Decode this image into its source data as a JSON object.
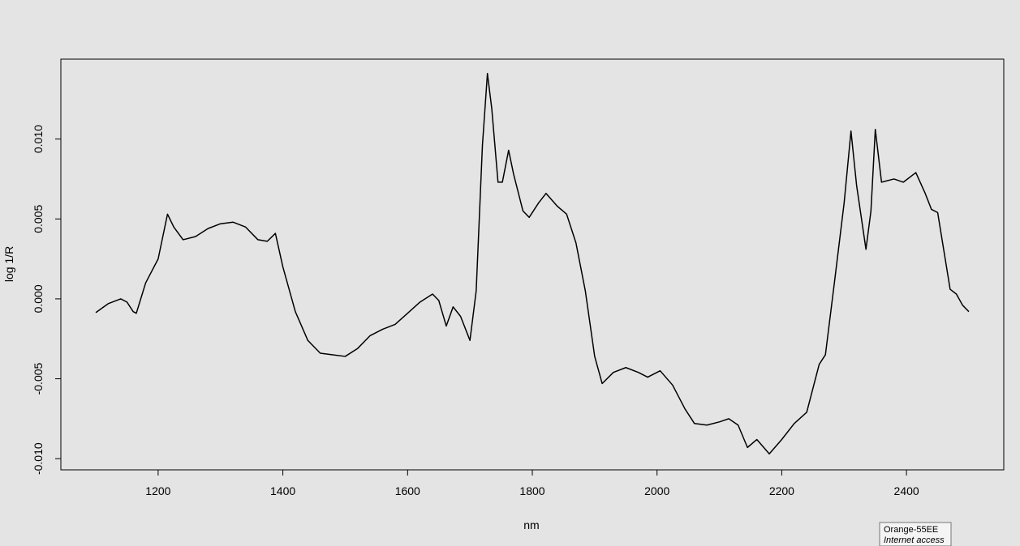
{
  "chart_data": {
    "type": "line",
    "x_label": "nm",
    "y_label": "log 1/R",
    "x": [
      1100,
      1120,
      1140,
      1150,
      1160,
      1165,
      1180,
      1200,
      1215,
      1225,
      1240,
      1260,
      1280,
      1300,
      1320,
      1340,
      1360,
      1375,
      1388,
      1400,
      1420,
      1440,
      1460,
      1480,
      1500,
      1520,
      1540,
      1560,
      1580,
      1600,
      1620,
      1640,
      1650,
      1662,
      1673,
      1685,
      1700,
      1710,
      1720,
      1728,
      1735,
      1745,
      1752,
      1762,
      1770,
      1785,
      1795,
      1810,
      1822,
      1840,
      1855,
      1870,
      1885,
      1900,
      1912,
      1930,
      1950,
      1970,
      1985,
      2005,
      2025,
      2045,
      2060,
      2080,
      2100,
      2115,
      2130,
      2145,
      2160,
      2180,
      2200,
      2220,
      2240,
      2260,
      2270,
      2285,
      2300,
      2311,
      2320,
      2335,
      2343,
      2350,
      2360,
      2380,
      2395,
      2415,
      2430,
      2440,
      2450,
      2460,
      2470,
      2480,
      2490,
      2500
    ],
    "series": [
      {
        "color": "#000000",
        "values": [
          -0.00086,
          -0.0003,
          0.0,
          -0.0002,
          -0.0008,
          -0.0009,
          0.001,
          0.0025,
          0.0053,
          0.0045,
          0.0037,
          0.0039,
          0.0044,
          0.0047,
          0.0048,
          0.0045,
          0.0037,
          0.0036,
          0.0041,
          0.002,
          -0.0008,
          -0.0026,
          -0.0034,
          -0.0035,
          -0.0036,
          -0.0031,
          -0.0023,
          -0.0019,
          -0.0016,
          -0.0009,
          -0.0002,
          0.0003,
          -0.0001,
          -0.0017,
          -0.0005,
          -0.0011,
          -0.0026,
          0.0005,
          0.0096,
          0.0141,
          0.0119,
          0.0073,
          0.0073,
          0.0093,
          0.0078,
          0.0055,
          0.0051,
          0.006,
          0.0066,
          0.0058,
          0.0053,
          0.0035,
          0.0005,
          -0.0036,
          -0.0053,
          -0.0046,
          -0.0043,
          -0.0046,
          -0.0049,
          -0.0045,
          -0.0054,
          -0.0069,
          -0.0078,
          -0.0079,
          -0.0077,
          -0.0075,
          -0.0079,
          -0.0093,
          -0.0088,
          -0.0097,
          -0.0088,
          -0.0078,
          -0.0071,
          -0.0041,
          -0.0035,
          0.0012,
          0.006,
          0.0105,
          0.0071,
          0.0031,
          0.0055,
          0.0106,
          0.0073,
          0.0075,
          0.0073,
          0.0079,
          0.0066,
          0.0056,
          0.0054,
          0.003,
          0.0006,
          0.0003,
          -0.0004,
          -0.0008
        ]
      }
    ],
    "xlim": [
      1044,
      2556
    ],
    "xticks": [
      1200,
      1400,
      1600,
      1800,
      2000,
      2200,
      2400
    ],
    "ylim": [
      -0.0107,
      0.015
    ],
    "yticks": [
      {
        "value": -0.01,
        "label": "-0.010"
      },
      {
        "value": -0.005,
        "label": "-0.005"
      },
      {
        "value": 0,
        "label": "0.000"
      },
      {
        "value": 0.005,
        "label": "0.005"
      },
      {
        "value": 0.01,
        "label": "0.010"
      }
    ]
  },
  "tooltip": {
    "title": "Orange-55EE",
    "subtitle": "Internet access"
  }
}
